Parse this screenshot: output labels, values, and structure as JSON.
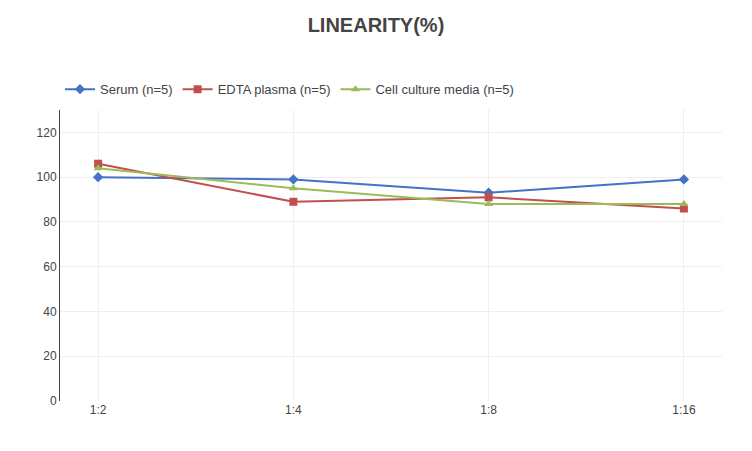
{
  "chart_data": {
    "type": "line",
    "title": "LINEARITY(%)",
    "categories": [
      "1:2",
      "1:4",
      "1:8",
      "1:16"
    ],
    "series": [
      {
        "name": "Serum (n=5)",
        "color": "#4472C4",
        "marker": "diamond",
        "values": [
          100,
          99,
          93,
          99
        ]
      },
      {
        "name": "EDTA plasma (n=5)",
        "color": "#C0504D",
        "marker": "square",
        "values": [
          106,
          89,
          91,
          86
        ]
      },
      {
        "name": "Cell culture media (n=5)",
        "color": "#9BBB59",
        "marker": "triangle-up",
        "values": [
          104,
          95,
          88,
          88
        ]
      }
    ],
    "ylim": [
      0,
      130
    ],
    "yticks": [
      0,
      20,
      40,
      60,
      80,
      100,
      120
    ],
    "grid": true,
    "legend": "upper left"
  }
}
